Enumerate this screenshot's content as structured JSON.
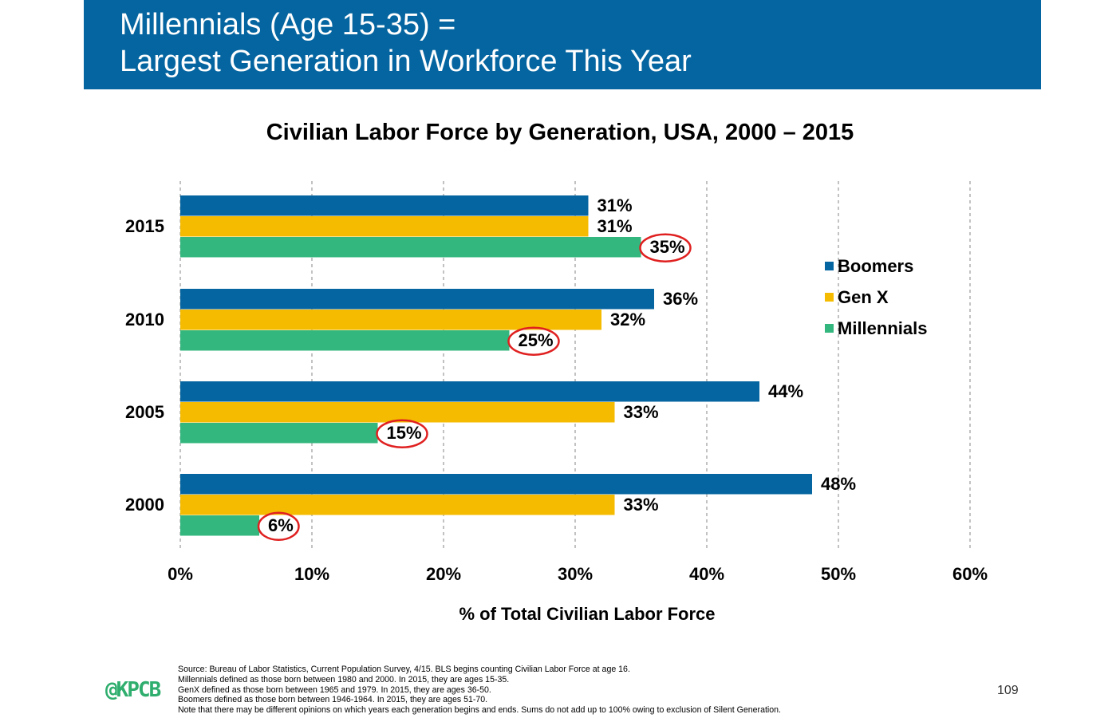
{
  "header": {
    "line1": "Millennials (Age 15-35) =",
    "line2": "Largest Generation in Workforce This Year"
  },
  "chart_data": {
    "type": "bar",
    "orientation": "horizontal",
    "title": "Civilian Labor Force by Generation, USA, 2000 – 2015",
    "xlabel": "% of Total Civilian Labor Force",
    "ylabel": "",
    "categories": [
      "2015",
      "2010",
      "2005",
      "2000"
    ],
    "series": [
      {
        "name": "Boomers",
        "color": "#0565a0",
        "values": [
          31,
          36,
          44,
          48
        ]
      },
      {
        "name": "Gen X",
        "color": "#f5bb00",
        "values": [
          31,
          32,
          33,
          33
        ]
      },
      {
        "name": "Millennials",
        "color": "#33b77e",
        "values": [
          35,
          25,
          15,
          6
        ]
      }
    ],
    "xlim": [
      0,
      60
    ],
    "xticks": [
      "0%",
      "10%",
      "20%",
      "30%",
      "40%",
      "50%",
      "60%"
    ],
    "grid": "vertical dashed",
    "legend_position": "right",
    "highlighted_series": "Millennials",
    "highlight_color": "#e02020"
  },
  "footer": {
    "source_lines": [
      "Source: Bureau of Labor Statistics, Current Population Survey, 4/15. BLS begins counting Civilian Labor Force at age 16.",
      "Millennials defined as those born between 1980 and 2000. In 2015, they are ages 15-35.",
      "GenX defined as those born between 1965 and 1979. In 2015, they are ages 36-50.",
      "Boomers defined as those born between 1946-1964. In 2015, they are ages 51-70.",
      "Note that there may be different opinions on which years each generation begins and ends. Sums do not add up to 100% owing to exclusion of Silent Generation."
    ],
    "logo": "@KPCB",
    "page_number": "109"
  }
}
